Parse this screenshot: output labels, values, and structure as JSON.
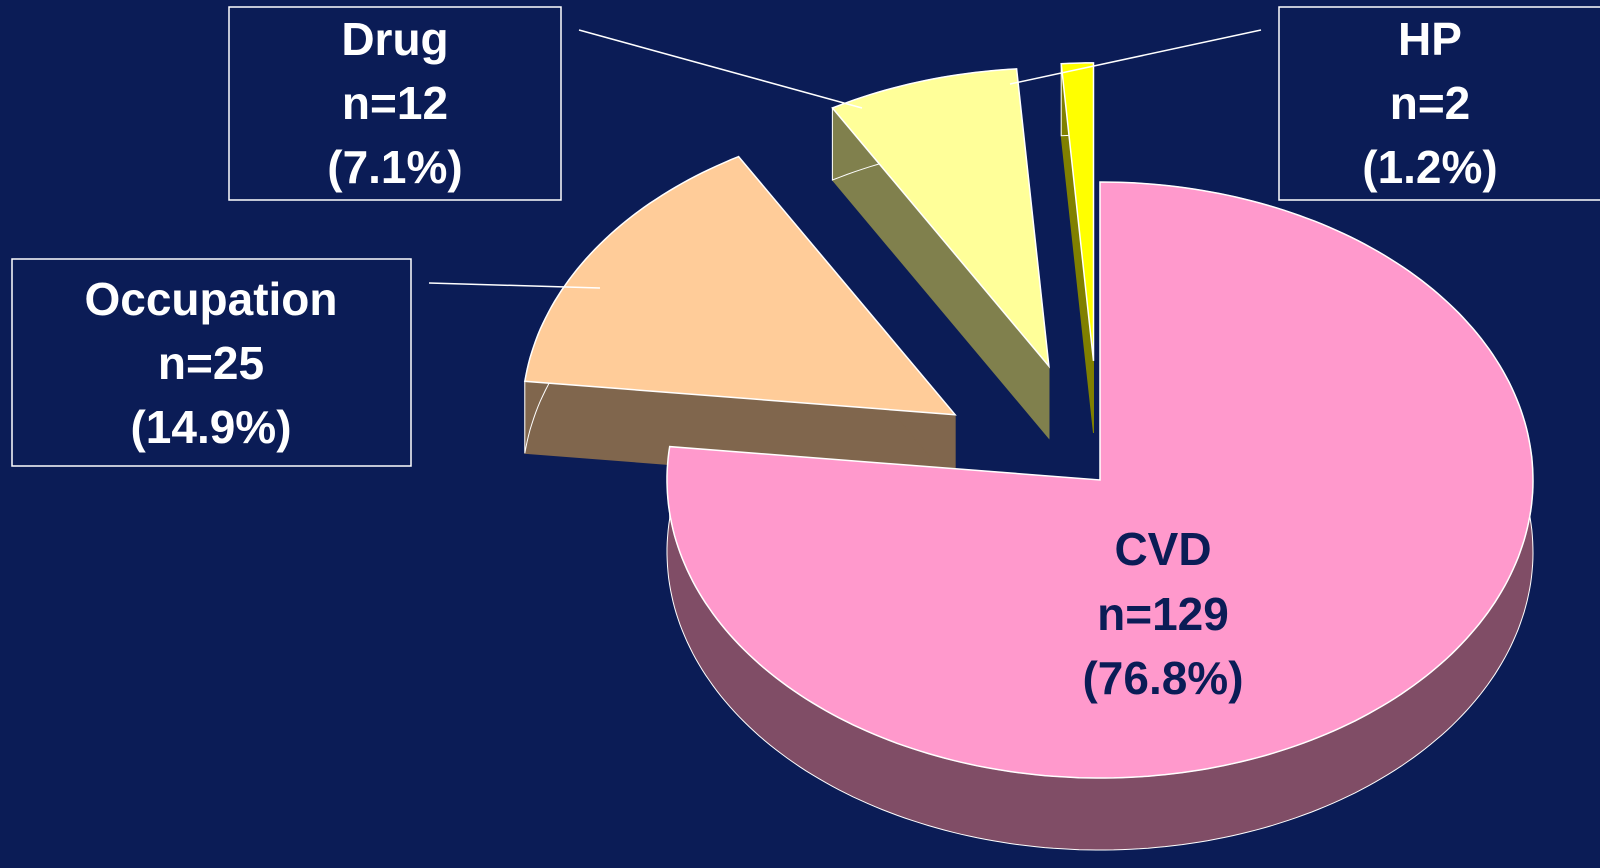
{
  "chart_data": {
    "type": "pie",
    "categories": [
      "CVD",
      "Occupation",
      "Drug",
      "HP"
    ],
    "values": [
      129,
      25,
      12,
      2
    ],
    "value_labels": [
      "n=129",
      "n=25",
      "n=12",
      "n=2"
    ],
    "percent_labels": [
      "(76.8%)",
      "(14.9%)",
      "(7.1%)",
      "(1.2%)"
    ],
    "colors": [
      "#ff99cc",
      "#ffcc99",
      "#ffff99",
      "#ffff00"
    ],
    "start_angle": 0,
    "direction": "clockwise",
    "three_d": true
  }
}
